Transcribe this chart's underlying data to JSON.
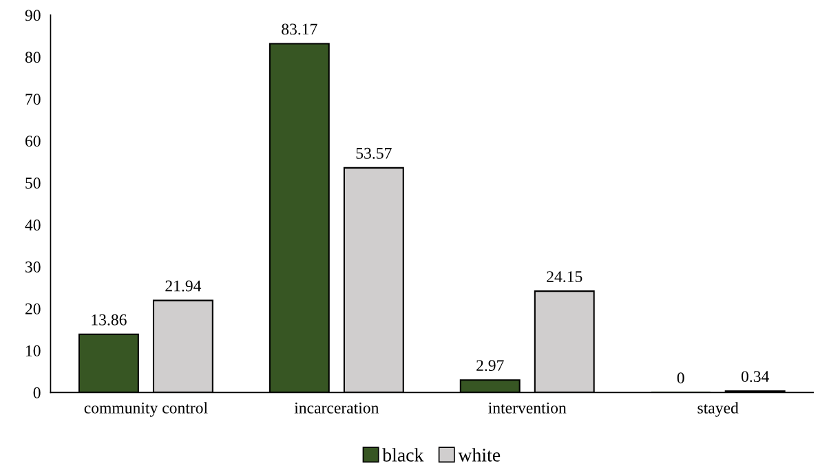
{
  "chart_data": {
    "type": "bar",
    "categories": [
      "community control",
      "incarceration",
      "intervention",
      "stayed"
    ],
    "series": [
      {
        "name": "black",
        "color": "#375623",
        "values": [
          13.86,
          83.17,
          2.97,
          0
        ]
      },
      {
        "name": "white",
        "color": "#d0cece",
        "values": [
          21.94,
          53.57,
          24.15,
          0.34
        ]
      }
    ],
    "ylim": [
      0,
      90
    ],
    "yticks": [
      0,
      10,
      20,
      30,
      40,
      50,
      60,
      70,
      80,
      90
    ],
    "data_labels": true,
    "legend": "bottom",
    "grid": false
  }
}
